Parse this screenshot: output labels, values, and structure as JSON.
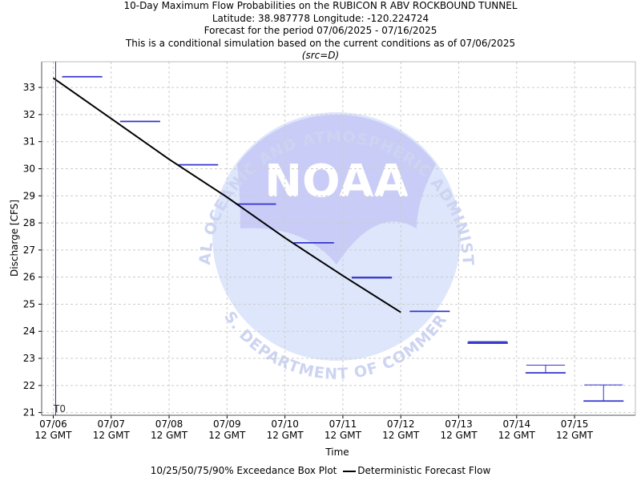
{
  "titles": {
    "line1": "10-Day Maximum Flow Probabilities on the RUBICON R ABV ROCKBOUND TUNNEL",
    "line2": "Latitude: 38.987778 Longitude: -120.224724",
    "line3": "Forecast for the period 07/06/2025 - 07/16/2025",
    "line4": "This is a conditional simulation based on the current conditions as of 07/06/2025",
    "line5": "(src=D)"
  },
  "watermark": {
    "logo_text": "NOAA",
    "arc_top": "NATIONAL OCEANIC AND ATMOSPHERIC ADMINISTRATION",
    "arc_bottom": "U.S. DEPARTMENT OF COMMERCE"
  },
  "legend": {
    "box_label": "10/25/50/75/90% Exceedance Box Plot",
    "line_label": "Deterministic Forecast Flow"
  },
  "colors": {
    "box": "#3333cc",
    "line": "#000000",
    "grid": "#cccccc",
    "t0": "#333366"
  },
  "chart_data": {
    "type": "line",
    "xlabel": "Time",
    "ylabel": "Discharge [CFS]",
    "t0_label": "T0",
    "xlim": [
      -0.2,
      10.05
    ],
    "ylim": [
      20.9,
      33.95
    ],
    "yticks": [
      21,
      22,
      23,
      24,
      25,
      26,
      27,
      28,
      29,
      30,
      31,
      32,
      33
    ],
    "xtick_labels": [
      {
        "date": "07/06",
        "time": "12 GMT"
      },
      {
        "date": "07/07",
        "time": "12 GMT"
      },
      {
        "date": "07/08",
        "time": "12 GMT"
      },
      {
        "date": "07/09",
        "time": "12 GMT"
      },
      {
        "date": "07/10",
        "time": "12 GMT"
      },
      {
        "date": "07/11",
        "time": "12 GMT"
      },
      {
        "date": "07/12",
        "time": "12 GMT"
      },
      {
        "date": "07/13",
        "time": "12 GMT"
      },
      {
        "date": "07/14",
        "time": "12 GMT"
      },
      {
        "date": "07/15",
        "time": "12 GMT"
      }
    ],
    "series": [
      {
        "name": "Deterministic Forecast Flow",
        "x": [
          0,
          1,
          2,
          3,
          4,
          5,
          6
        ],
        "y": [
          33.35,
          31.85,
          30.35,
          28.95,
          27.45,
          26.05,
          24.7
        ]
      }
    ],
    "boxes": [
      {
        "x": 0.5,
        "p10": 33.4,
        "p25": 33.4,
        "p50": 33.4,
        "p75": 33.4,
        "p90": 33.4
      },
      {
        "x": 1.5,
        "p10": 31.75,
        "p25": 31.75,
        "p50": 31.75,
        "p75": 31.75,
        "p90": 31.75
      },
      {
        "x": 2.5,
        "p10": 30.15,
        "p25": 30.15,
        "p50": 30.15,
        "p75": 30.15,
        "p90": 30.15
      },
      {
        "x": 3.5,
        "p10": 28.7,
        "p25": 28.7,
        "p50": 28.7,
        "p75": 28.7,
        "p90": 28.7
      },
      {
        "x": 4.5,
        "p10": 27.27,
        "p25": 27.27,
        "p50": 27.27,
        "p75": 27.27,
        "p90": 27.27
      },
      {
        "x": 5.5,
        "p10": 25.97,
        "p25": 25.97,
        "p50": 25.97,
        "p75": 26.0,
        "p90": 26.0
      },
      {
        "x": 6.5,
        "p10": 24.74,
        "p25": 24.74,
        "p50": 24.74,
        "p75": 24.74,
        "p90": 24.74
      },
      {
        "x": 7.5,
        "p10": 23.55,
        "p25": 23.55,
        "p50": 23.57,
        "p75": 23.6,
        "p90": 23.62
      },
      {
        "x": 8.5,
        "p10": 22.47,
        "p25": 22.47,
        "p50": 22.47,
        "p75": 22.47,
        "p90": 22.75
      },
      {
        "x": 9.5,
        "p10": 21.43,
        "p25": 21.43,
        "p50": 21.43,
        "p75": 21.43,
        "p90": 22.02
      }
    ]
  }
}
